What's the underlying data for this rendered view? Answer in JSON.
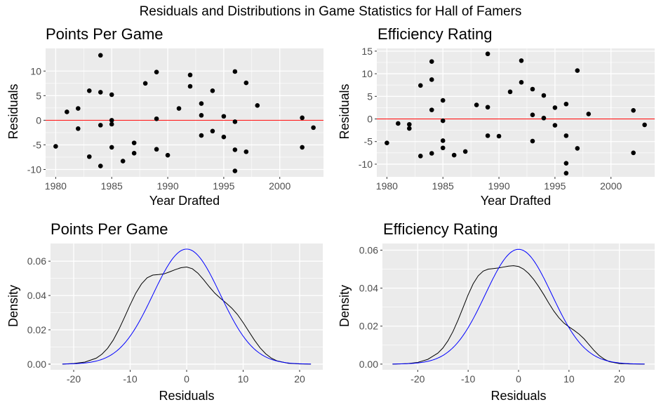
{
  "figure_title": "Residuals and Distributions in Game Statistics for Hall of Famers",
  "colors": {
    "panel_bg": "#ebebeb",
    "grid": "#ffffff",
    "points": "#000000",
    "ref_line": "#ff0000",
    "kde_line": "#000000",
    "normal_line": "#0000ff"
  },
  "chart_data": [
    {
      "type": "scatter",
      "title": "Points Per Game",
      "xlabel": "Year Drafted",
      "ylabel": "Residuals",
      "xlim": [
        1979.1,
        2003.9
      ],
      "ylim": [
        -11.5,
        14.6
      ],
      "xticks": [
        1980,
        1985,
        1990,
        1995,
        2000
      ],
      "yticks": [
        -10,
        -5,
        0,
        5,
        10
      ],
      "hline": 0,
      "grid": true,
      "points": [
        [
          1980,
          -5.3
        ],
        [
          1981,
          1.7
        ],
        [
          1982,
          2.4
        ],
        [
          1982,
          -1.7
        ],
        [
          1983,
          6.0
        ],
        [
          1983,
          -7.4
        ],
        [
          1984,
          13.2
        ],
        [
          1984,
          5.7
        ],
        [
          1984,
          -1.0
        ],
        [
          1984,
          -9.3
        ],
        [
          1985,
          5.2
        ],
        [
          1985,
          0.0
        ],
        [
          1985,
          -0.8
        ],
        [
          1985,
          -5.5
        ],
        [
          1986,
          -8.3
        ],
        [
          1987,
          -4.6
        ],
        [
          1987,
          -6.7
        ],
        [
          1988,
          7.5
        ],
        [
          1989,
          9.8
        ],
        [
          1989,
          0.3
        ],
        [
          1989,
          -5.9
        ],
        [
          1990,
          -7.1
        ],
        [
          1991,
          2.4
        ],
        [
          1992,
          9.2
        ],
        [
          1992,
          6.9
        ],
        [
          1993,
          3.4
        ],
        [
          1993,
          1.0
        ],
        [
          1993,
          -3.1
        ],
        [
          1994,
          6.0
        ],
        [
          1994,
          -2.2
        ],
        [
          1995,
          0.8
        ],
        [
          1995,
          -3.4
        ],
        [
          1996,
          9.9
        ],
        [
          1996,
          -0.3
        ],
        [
          1996,
          -6.0
        ],
        [
          1996,
          -10.3
        ],
        [
          1997,
          7.6
        ],
        [
          1997,
          -6.4
        ],
        [
          1998,
          3.0
        ],
        [
          2002,
          0.5
        ],
        [
          2002,
          -5.5
        ],
        [
          2003,
          -1.5
        ]
      ]
    },
    {
      "type": "scatter",
      "title": "Efficiency Rating",
      "xlabel": "Year Drafted",
      "ylabel": "Residuals",
      "xlim": [
        1979.1,
        2003.9
      ],
      "ylim": [
        -12.8,
        15.6
      ],
      "xticks": [
        1980,
        1985,
        1990,
        1995,
        2000
      ],
      "yticks": [
        -10,
        -5,
        0,
        5,
        10,
        15
      ],
      "hline": 0,
      "grid": true,
      "points": [
        [
          1980,
          -5.3
        ],
        [
          1981,
          -1.0
        ],
        [
          1982,
          -1.2
        ],
        [
          1982,
          -2.1
        ],
        [
          1983,
          7.4
        ],
        [
          1983,
          -8.2
        ],
        [
          1984,
          12.7
        ],
        [
          1984,
          8.7
        ],
        [
          1984,
          2.0
        ],
        [
          1984,
          -7.6
        ],
        [
          1985,
          4.1
        ],
        [
          1985,
          -0.4
        ],
        [
          1985,
          -4.8
        ],
        [
          1985,
          -6.4
        ],
        [
          1986,
          -8.0
        ],
        [
          1987,
          -7.2
        ],
        [
          1988,
          3.1
        ],
        [
          1989,
          14.4
        ],
        [
          1989,
          2.6
        ],
        [
          1989,
          -3.7
        ],
        [
          1990,
          -3.8
        ],
        [
          1991,
          6.0
        ],
        [
          1992,
          12.9
        ],
        [
          1992,
          8.1
        ],
        [
          1993,
          6.6
        ],
        [
          1993,
          0.9
        ],
        [
          1993,
          -4.9
        ],
        [
          1994,
          5.2
        ],
        [
          1994,
          0.2
        ],
        [
          1995,
          2.5
        ],
        [
          1995,
          -1.4
        ],
        [
          1996,
          3.3
        ],
        [
          1996,
          -3.7
        ],
        [
          1996,
          -9.8
        ],
        [
          1996,
          -12.0
        ],
        [
          1997,
          10.7
        ],
        [
          1997,
          -6.5
        ],
        [
          1998,
          1.1
        ],
        [
          2002,
          1.9
        ],
        [
          2002,
          -7.5
        ],
        [
          2003,
          -1.3
        ]
      ]
    },
    {
      "type": "line",
      "title": "Points Per Game",
      "xlabel": "Residuals",
      "ylabel": "Density",
      "xlim": [
        -24.1,
        24.1
      ],
      "ylim": [
        -0.0033,
        0.0703
      ],
      "xticks": [
        -20,
        -10,
        0,
        10,
        20
      ],
      "yticks": [
        0.0,
        0.02,
        0.04,
        0.06
      ],
      "ytick_labels": [
        "0.00",
        "0.02",
        "0.04",
        "0.06"
      ],
      "grid": true,
      "series": [
        {
          "line": "kde",
          "values": [
            [
              -22,
              0.0
            ],
            [
              -20,
              0.0004
            ],
            [
              -18,
              0.0012
            ],
            [
              -16,
              0.0035
            ],
            [
              -15,
              0.0058
            ],
            [
              -14,
              0.0092
            ],
            [
              -13,
              0.014
            ],
            [
              -12,
              0.0202
            ],
            [
              -11,
              0.0273
            ],
            [
              -10,
              0.0346
            ],
            [
              -9,
              0.0414
            ],
            [
              -8,
              0.0467
            ],
            [
              -7,
              0.0503
            ],
            [
              -6,
              0.0519
            ],
            [
              -5,
              0.0522
            ],
            [
              -4,
              0.0526
            ],
            [
              -3,
              0.0538
            ],
            [
              -2,
              0.0551
            ],
            [
              -1,
              0.0562
            ],
            [
              0,
              0.0566
            ],
            [
              1,
              0.0556
            ],
            [
              2,
              0.053
            ],
            [
              3,
              0.0492
            ],
            [
              4,
              0.0451
            ],
            [
              5,
              0.0413
            ],
            [
              6,
              0.0383
            ],
            [
              7,
              0.0356
            ],
            [
              8,
              0.0326
            ],
            [
              9,
              0.0289
            ],
            [
              10,
              0.0242
            ],
            [
              11,
              0.0191
            ],
            [
              12,
              0.014
            ],
            [
              13,
              0.0095
            ],
            [
              14,
              0.006
            ],
            [
              15,
              0.0035
            ],
            [
              16,
              0.0019
            ],
            [
              18,
              0.0005
            ],
            [
              20,
              0.0001
            ],
            [
              22,
              0.0
            ]
          ]
        },
        {
          "line": "normal",
          "mean": 0,
          "sd": 5.95,
          "range": [
            -22,
            22
          ]
        }
      ]
    },
    {
      "type": "line",
      "title": "Efficiency Rating",
      "xlabel": "Residuals",
      "ylabel": "Density",
      "xlim": [
        -27.0,
        27.0
      ],
      "ylim": [
        -0.003,
        0.0635
      ],
      "xticks": [
        -20,
        -10,
        0,
        10,
        20
      ],
      "yticks": [
        0.0,
        0.02,
        0.04,
        0.06
      ],
      "ytick_labels": [
        "0.00",
        "0.02",
        "0.04",
        "0.06"
      ],
      "grid": true,
      "series": [
        {
          "line": "kde",
          "values": [
            [
              -25,
              0.0
            ],
            [
              -22,
              0.0003
            ],
            [
              -20,
              0.0009
            ],
            [
              -18,
              0.0025
            ],
            [
              -16,
              0.0058
            ],
            [
              -15,
              0.0085
            ],
            [
              -14,
              0.0123
            ],
            [
              -13,
              0.0172
            ],
            [
              -12,
              0.0232
            ],
            [
              -11,
              0.0298
            ],
            [
              -10,
              0.0365
            ],
            [
              -9,
              0.0423
            ],
            [
              -8,
              0.0465
            ],
            [
              -7,
              0.049
            ],
            [
              -6,
              0.05
            ],
            [
              -5,
              0.0503
            ],
            [
              -4,
              0.0506
            ],
            [
              -3,
              0.0511
            ],
            [
              -2,
              0.0516
            ],
            [
              -1,
              0.0518
            ],
            [
              0,
              0.0514
            ],
            [
              1,
              0.05
            ],
            [
              2,
              0.0477
            ],
            [
              3,
              0.0446
            ],
            [
              4,
              0.0408
            ],
            [
              5,
              0.0366
            ],
            [
              6,
              0.0321
            ],
            [
              7,
              0.0279
            ],
            [
              8,
              0.0244
            ],
            [
              9,
              0.0216
            ],
            [
              10,
              0.0196
            ],
            [
              11,
              0.0178
            ],
            [
              12,
              0.0158
            ],
            [
              13,
              0.0133
            ],
            [
              14,
              0.0102
            ],
            [
              15,
              0.0071
            ],
            [
              16,
              0.0045
            ],
            [
              17,
              0.0026
            ],
            [
              18,
              0.0013
            ],
            [
              20,
              0.0003
            ],
            [
              22,
              0.0001
            ],
            [
              25,
              0.0
            ]
          ]
        },
        {
          "line": "normal",
          "mean": 0,
          "sd": 6.6,
          "range": [
            -25,
            25
          ]
        }
      ]
    }
  ]
}
